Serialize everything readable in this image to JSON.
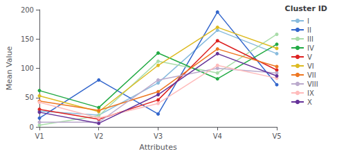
{
  "chart_data": {
    "type": "line",
    "categories": [
      "V1",
      "V2",
      "V3",
      "V4",
      "V5"
    ],
    "series": [
      {
        "name": "I",
        "color": "#88BBDD",
        "values": [
          27,
          20,
          75,
          165,
          125
        ]
      },
      {
        "name": "II",
        "color": "#3366CC",
        "values": [
          15,
          80,
          22,
          196,
          72
        ]
      },
      {
        "name": "III",
        "color": "#AADDAA",
        "values": [
          3,
          19,
          112,
          92,
          158
        ]
      },
      {
        "name": "IV",
        "color": "#22AA44",
        "values": [
          62,
          33,
          126,
          82,
          141
        ]
      },
      {
        "name": "V",
        "color": "#DD2222",
        "values": [
          30,
          13,
          46,
          147,
          97
        ]
      },
      {
        "name": "VI",
        "color": "#DDBB22",
        "values": [
          53,
          26,
          105,
          170,
          134
        ]
      },
      {
        "name": "VII",
        "color": "#EE7722",
        "values": [
          44,
          28,
          60,
          133,
          103
        ]
      },
      {
        "name": "VIII",
        "color": "#BBAACC",
        "values": [
          8,
          8,
          80,
          100,
          92
        ]
      },
      {
        "name": "IX",
        "color": "#FFBBBB",
        "values": [
          42,
          15,
          40,
          105,
          83
        ]
      },
      {
        "name": "X",
        "color": "#663399",
        "values": [
          25,
          6,
          55,
          125,
          87
        ]
      }
    ],
    "xlabel": "Attributes",
    "ylabel": "Mean Value",
    "ylim": [
      0,
      200
    ],
    "yticks": [
      0,
      50,
      100,
      150,
      200
    ],
    "legend_title": "Cluster ID",
    "legend": "right",
    "marker": "circle",
    "grid": false
  }
}
